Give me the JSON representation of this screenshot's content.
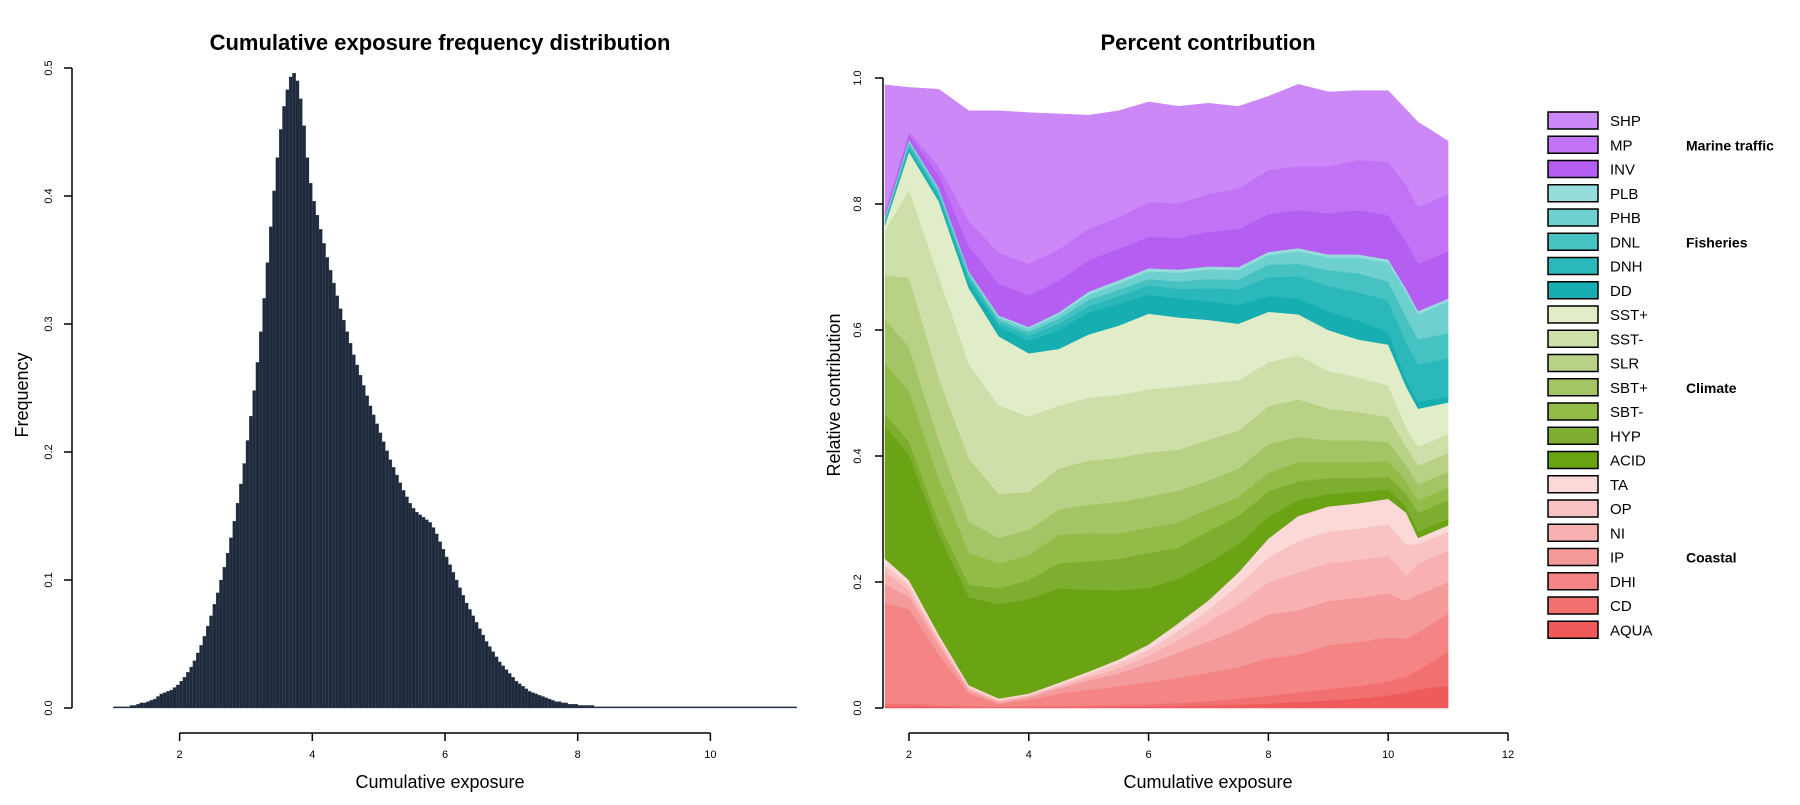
{
  "chart_data": [
    {
      "type": "bar",
      "title": "Cumulative exposure frequency distribution",
      "xlabel": "Cumulative exposure",
      "ylabel": "Frequency",
      "xlim": [
        0.8,
        11.2
      ],
      "ylim": [
        0,
        0.5
      ],
      "x_ticks": [
        2,
        4,
        6,
        8,
        10
      ],
      "y_ticks": [
        0.0,
        0.1,
        0.2,
        0.3,
        0.4,
        0.5
      ],
      "bar_color": "#1f2a3c",
      "bins": {
        "start": 1.0,
        "width": 0.05,
        "note_units": "cumulative exposure"
      },
      "values": [
        0.001,
        0.001,
        0.001,
        0.001,
        0.001,
        0.002,
        0.002,
        0.003,
        0.004,
        0.004,
        0.005,
        0.006,
        0.007,
        0.009,
        0.011,
        0.012,
        0.013,
        0.014,
        0.016,
        0.018,
        0.021,
        0.024,
        0.028,
        0.032,
        0.037,
        0.043,
        0.049,
        0.056,
        0.064,
        0.072,
        0.081,
        0.09,
        0.1,
        0.11,
        0.121,
        0.133,
        0.146,
        0.16,
        0.175,
        0.191,
        0.209,
        0.228,
        0.248,
        0.27,
        0.294,
        0.32,
        0.348,
        0.376,
        0.404,
        0.43,
        0.452,
        0.47,
        0.483,
        0.493,
        0.496,
        0.49,
        0.476,
        0.455,
        0.43,
        0.41,
        0.396,
        0.385,
        0.374,
        0.363,
        0.352,
        0.342,
        0.332,
        0.322,
        0.312,
        0.303,
        0.294,
        0.285,
        0.276,
        0.268,
        0.26,
        0.252,
        0.244,
        0.236,
        0.229,
        0.222,
        0.215,
        0.208,
        0.201,
        0.194,
        0.188,
        0.182,
        0.176,
        0.17,
        0.165,
        0.16,
        0.156,
        0.153,
        0.151,
        0.149,
        0.147,
        0.145,
        0.141,
        0.136,
        0.13,
        0.124,
        0.118,
        0.112,
        0.106,
        0.1,
        0.094,
        0.088,
        0.082,
        0.077,
        0.072,
        0.067,
        0.062,
        0.057,
        0.052,
        0.048,
        0.044,
        0.04,
        0.036,
        0.033,
        0.03,
        0.027,
        0.024,
        0.021,
        0.019,
        0.017,
        0.015,
        0.013,
        0.012,
        0.011,
        0.01,
        0.009,
        0.008,
        0.007,
        0.006,
        0.005,
        0.005,
        0.004,
        0.004,
        0.003,
        0.003,
        0.003,
        0.002,
        0.002,
        0.002,
        0.002,
        0.002,
        0.001,
        0.001,
        0.001,
        0.001,
        0.001,
        0.001,
        0.001,
        0.001,
        0.001,
        0.001,
        0.001,
        0.001,
        0.001,
        0.001,
        0.001,
        0.001,
        0.001,
        0.001,
        0.001,
        0.001,
        0.001,
        0.001,
        0.001,
        0.001,
        0.001,
        0.001,
        0.001,
        0.001,
        0.001,
        0.001,
        0.001,
        0.001,
        0.001,
        0.001,
        0.001,
        0.001,
        0.001,
        0.001,
        0.001,
        0.001,
        0.001,
        0.001,
        0.001,
        0.001,
        0.001,
        0.001,
        0.001,
        0.001,
        0.001,
        0.001,
        0.001,
        0.001,
        0.001,
        0.001,
        0.001,
        0.001,
        0.001,
        0.001,
        0.001,
        0.001,
        0.001
      ]
    },
    {
      "type": "area",
      "stacked": true,
      "title": "Percent contribution",
      "xlabel": "Cumulative exposure",
      "ylabel": "Relative contribution",
      "xlim": [
        1.6,
        12
      ],
      "ylim": [
        0,
        1
      ],
      "x_ticks": [
        2,
        4,
        6,
        8,
        10,
        12
      ],
      "y_ticks": [
        0.0,
        0.2,
        0.4,
        0.6,
        0.8,
        1.0
      ],
      "x": [
        1.6,
        2.0,
        2.5,
        3.0,
        3.5,
        4.0,
        4.5,
        5.0,
        5.5,
        6.0,
        6.5,
        7.0,
        7.5,
        8.0,
        8.5,
        9.0,
        9.5,
        10.0,
        10.3,
        10.5,
        11.0
      ],
      "series": [
        {
          "name": "AQUA",
          "color": "#f05a5a",
          "values": [
            0.003,
            0.003,
            0.002,
            0.001,
            0.001,
            0.001,
            0.001,
            0.001,
            0.002,
            0.002,
            0.003,
            0.004,
            0.005,
            0.007,
            0.01,
            0.012,
            0.015,
            0.02,
            0.025,
            0.03,
            0.035
          ]
        },
        {
          "name": "CD",
          "color": "#f37070",
          "values": [
            0.004,
            0.004,
            0.003,
            0.002,
            0.001,
            0.002,
            0.002,
            0.003,
            0.003,
            0.004,
            0.005,
            0.007,
            0.01,
            0.012,
            0.015,
            0.018,
            0.02,
            0.022,
            0.025,
            0.03,
            0.055
          ]
        },
        {
          "name": "DHI",
          "color": "#f58484",
          "values": [
            0.16,
            0.15,
            0.08,
            0.02,
            0.005,
            0.01,
            0.02,
            0.025,
            0.03,
            0.035,
            0.04,
            0.045,
            0.05,
            0.06,
            0.06,
            0.07,
            0.07,
            0.07,
            0.06,
            0.06,
            0.06
          ]
        },
        {
          "name": "IP",
          "color": "#f59a9a",
          "values": [
            0.03,
            0.02,
            0.015,
            0.005,
            0.002,
            0.004,
            0.008,
            0.015,
            0.02,
            0.03,
            0.04,
            0.05,
            0.06,
            0.07,
            0.07,
            0.07,
            0.07,
            0.07,
            0.06,
            0.06,
            0.05
          ]
        },
        {
          "name": "NI",
          "color": "#f8b0b0",
          "values": [
            0.02,
            0.01,
            0.006,
            0.003,
            0.002,
            0.002,
            0.003,
            0.005,
            0.008,
            0.012,
            0.02,
            0.03,
            0.04,
            0.05,
            0.06,
            0.06,
            0.06,
            0.06,
            0.04,
            0.05,
            0.05
          ]
        },
        {
          "name": "OP",
          "color": "#f9c3c3",
          "values": [
            0.01,
            0.008,
            0.005,
            0.002,
            0.002,
            0.002,
            0.003,
            0.005,
            0.008,
            0.01,
            0.015,
            0.02,
            0.03,
            0.04,
            0.05,
            0.05,
            0.05,
            0.05,
            0.05,
            0.03,
            0.03
          ]
        },
        {
          "name": "TA",
          "color": "#fbd9d9",
          "values": [
            0.01,
            0.008,
            0.005,
            0.003,
            0.002,
            0.002,
            0.003,
            0.004,
            0.006,
            0.008,
            0.012,
            0.015,
            0.02,
            0.03,
            0.04,
            0.04,
            0.04,
            0.04,
            0.05,
            0.01,
            0.01
          ]
        },
        {
          "name": "ACID",
          "color": "#6aa313",
          "values": [
            0.21,
            0.2,
            0.16,
            0.14,
            0.15,
            0.15,
            0.15,
            0.13,
            0.11,
            0.09,
            0.07,
            0.06,
            0.045,
            0.035,
            0.025,
            0.02,
            0.018,
            0.015,
            0.01,
            0.01,
            0.01
          ]
        },
        {
          "name": "HYP",
          "color": "#7eae2f",
          "values": [
            0.02,
            0.02,
            0.018,
            0.02,
            0.025,
            0.03,
            0.04,
            0.045,
            0.05,
            0.055,
            0.05,
            0.05,
            0.045,
            0.04,
            0.03,
            0.025,
            0.022,
            0.02,
            0.02,
            0.03,
            0.03
          ]
        },
        {
          "name": "SBT-",
          "color": "#92bc47",
          "values": [
            0.08,
            0.08,
            0.07,
            0.05,
            0.04,
            0.04,
            0.045,
            0.045,
            0.04,
            0.04,
            0.04,
            0.035,
            0.03,
            0.03,
            0.03,
            0.025,
            0.025,
            0.025,
            0.02,
            0.02,
            0.02
          ]
        },
        {
          "name": "SBT+",
          "color": "#a4c566",
          "values": [
            0.07,
            0.07,
            0.06,
            0.05,
            0.04,
            0.04,
            0.04,
            0.045,
            0.05,
            0.05,
            0.05,
            0.045,
            0.045,
            0.045,
            0.04,
            0.035,
            0.035,
            0.03,
            0.025,
            0.025,
            0.025
          ]
        },
        {
          "name": "SLR",
          "color": "#b8d184",
          "values": [
            0.07,
            0.11,
            0.1,
            0.1,
            0.07,
            0.06,
            0.065,
            0.07,
            0.07,
            0.07,
            0.065,
            0.065,
            0.06,
            0.06,
            0.06,
            0.05,
            0.045,
            0.04,
            0.03,
            0.03,
            0.03
          ]
        },
        {
          "name": "SST-",
          "color": "#cee0a9",
          "values": [
            0.07,
            0.14,
            0.16,
            0.15,
            0.14,
            0.12,
            0.1,
            0.1,
            0.1,
            0.1,
            0.1,
            0.09,
            0.08,
            0.07,
            0.07,
            0.06,
            0.055,
            0.05,
            0.03,
            0.03,
            0.03
          ]
        },
        {
          "name": "SST+",
          "color": "#e1ecc9",
          "values": [
            0.01,
            0.06,
            0.12,
            0.12,
            0.11,
            0.1,
            0.09,
            0.1,
            0.11,
            0.12,
            0.11,
            0.1,
            0.09,
            0.08,
            0.065,
            0.065,
            0.06,
            0.065,
            0.065,
            0.06,
            0.05
          ]
        },
        {
          "name": "DD",
          "color": "#17aeb1",
          "values": [
            0.003,
            0.005,
            0.006,
            0.01,
            0.015,
            0.02,
            0.03,
            0.035,
            0.035,
            0.03,
            0.03,
            0.03,
            0.03,
            0.025,
            0.025,
            0.03,
            0.03,
            0.02,
            0.01,
            0.01,
            0.01
          ]
        },
        {
          "name": "DNH",
          "color": "#2ab8ba",
          "values": [
            0.003,
            0.005,
            0.005,
            0.006,
            0.006,
            0.008,
            0.01,
            0.01,
            0.012,
            0.015,
            0.015,
            0.02,
            0.025,
            0.03,
            0.035,
            0.04,
            0.045,
            0.05,
            0.06,
            0.06,
            0.06
          ]
        },
        {
          "name": "DNL",
          "color": "#46c2c3",
          "values": [
            0.003,
            0.004,
            0.005,
            0.005,
            0.005,
            0.006,
            0.008,
            0.01,
            0.01,
            0.01,
            0.012,
            0.015,
            0.015,
            0.02,
            0.02,
            0.025,
            0.03,
            0.03,
            0.04,
            0.04,
            0.04
          ]
        },
        {
          "name": "PHB",
          "color": "#6fd0d0",
          "values": [
            0.002,
            0.003,
            0.003,
            0.004,
            0.004,
            0.005,
            0.006,
            0.008,
            0.01,
            0.012,
            0.014,
            0.015,
            0.015,
            0.015,
            0.02,
            0.02,
            0.025,
            0.03,
            0.04,
            0.04,
            0.05
          ]
        },
        {
          "name": "PLB",
          "color": "#96dcdc",
          "values": [
            0.002,
            0.002,
            0.002,
            0.002,
            0.003,
            0.003,
            0.004,
            0.005,
            0.005,
            0.005,
            0.005,
            0.005,
            0.005,
            0.005,
            0.005,
            0.005,
            0.005,
            0.005,
            0.005,
            0.005,
            0.005
          ]
        },
        {
          "name": "INV",
          "color": "#b45ef2",
          "values": [
            0.005,
            0.008,
            0.02,
            0.04,
            0.05,
            0.05,
            0.05,
            0.05,
            0.05,
            0.05,
            0.05,
            0.055,
            0.06,
            0.06,
            0.06,
            0.065,
            0.07,
            0.07,
            0.075,
            0.075,
            0.075
          ]
        },
        {
          "name": "MP",
          "color": "#c172f5",
          "values": [
            0.003,
            0.005,
            0.015,
            0.04,
            0.05,
            0.05,
            0.05,
            0.05,
            0.05,
            0.055,
            0.055,
            0.06,
            0.065,
            0.07,
            0.07,
            0.075,
            0.08,
            0.085,
            0.09,
            0.09,
            0.09
          ]
        },
        {
          "name": "SHP",
          "color": "#cd88f8",
          "values": [
            0.201,
            0.07,
            0.122,
            0.175,
            0.225,
            0.24,
            0.215,
            0.18,
            0.169,
            0.159,
            0.154,
            0.144,
            0.13,
            0.117,
            0.13,
            0.118,
            0.11,
            0.113,
            0.12,
            0.135,
            0.085
          ]
        }
      ],
      "legend_placement": "right",
      "legend_groups": [
        {
          "label": "Marine traffic",
          "members": [
            "SHP",
            "MP",
            "INV"
          ]
        },
        {
          "label": "Fisheries",
          "members": [
            "PLB",
            "PHB",
            "DNL",
            "DNH",
            "DD"
          ]
        },
        {
          "label": "Climate",
          "members": [
            "SST+",
            "SST-",
            "SLR",
            "SBT+",
            "SBT-",
            "HYP",
            "ACID"
          ]
        },
        {
          "label": "Coastal",
          "members": [
            "TA",
            "OP",
            "NI",
            "IP",
            "DHI",
            "CD",
            "AQUA"
          ]
        }
      ]
    }
  ]
}
